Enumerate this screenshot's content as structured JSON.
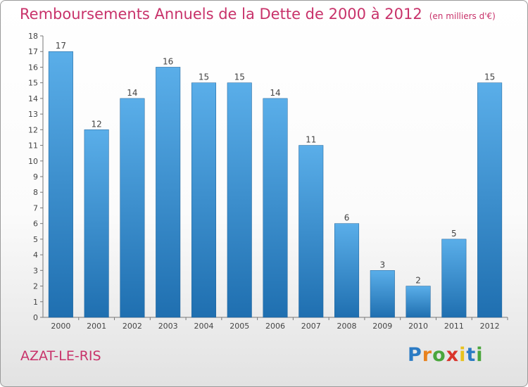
{
  "header": {
    "title": "Remboursements Annuels de la Dette de 2000 à 2012",
    "unit": "(en milliers d'€)"
  },
  "footer": {
    "commune": "AZAT-LE-RIS",
    "logo_letters": [
      "P",
      "r",
      "o",
      "x",
      "i",
      "t",
      "i"
    ],
    "logo_colors": [
      "#2b7bc4",
      "#e8821e",
      "#4aa63c",
      "#d9342b",
      "#e8c21e",
      "#2b7bc4",
      "#4aa63c"
    ]
  },
  "chart_data": {
    "type": "bar",
    "title": "Remboursements Annuels de la Dette de 2000 à 2012",
    "xlabel": "",
    "ylabel": "",
    "categories": [
      "2000",
      "2001",
      "2002",
      "2003",
      "2004",
      "2005",
      "2006",
      "2007",
      "2008",
      "2009",
      "2010",
      "2011",
      "2012"
    ],
    "values": [
      17,
      12,
      14,
      16,
      15,
      15,
      14,
      11,
      6,
      3,
      2,
      5,
      15
    ],
    "ylim": [
      0,
      18
    ],
    "yticks": [
      0,
      1,
      2,
      3,
      4,
      5,
      6,
      7,
      8,
      9,
      10,
      11,
      12,
      13,
      14,
      15,
      16,
      17,
      18
    ],
    "grid": false,
    "bar_color_top": "#5aaee9",
    "bar_color_bottom": "#1f6fb0"
  }
}
